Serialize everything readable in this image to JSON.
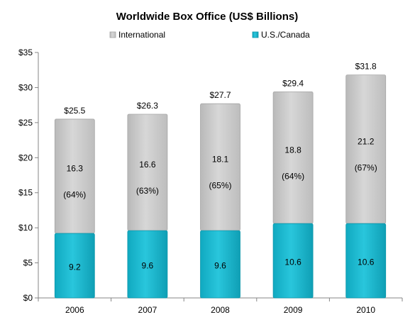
{
  "chart_data": {
    "type": "bar",
    "stacked": true,
    "title": "Worldwide Box Office (US$ Billions)",
    "xlabel": "",
    "ylabel": "",
    "categories": [
      "2006",
      "2007",
      "2008",
      "2009",
      "2010"
    ],
    "series": [
      {
        "name": "U.S./Canada",
        "color": "#1ab8d0",
        "values": [
          9.2,
          9.6,
          9.6,
          10.6,
          10.6
        ],
        "labels": [
          "9.2",
          "9.6",
          "9.6",
          "10.6",
          "10.6"
        ]
      },
      {
        "name": "International",
        "color": "#c8c8c8",
        "values": [
          16.3,
          16.6,
          18.1,
          18.8,
          21.2
        ],
        "labels": [
          "16.3",
          "16.6",
          "18.1",
          "18.8",
          "21.2"
        ],
        "share_labels": [
          "(64%)",
          "(63%)",
          "(65%)",
          "(64%)",
          "(67%)"
        ]
      }
    ],
    "totals": [
      25.5,
      26.3,
      27.7,
      29.4,
      31.8
    ],
    "total_labels": [
      "$25.5",
      "$26.3",
      "$27.7",
      "$29.4",
      "$31.8"
    ],
    "legend_order": [
      "International",
      "U.S./Canada"
    ],
    "legend_position": "top",
    "ylim": [
      0,
      35
    ],
    "yticks": [
      0,
      5,
      10,
      15,
      20,
      25,
      30,
      35
    ],
    "ytick_labels": [
      "$0",
      "$5",
      "$10",
      "$15",
      "$20",
      "$25",
      "$30",
      "$35"
    ],
    "grid": false
  }
}
